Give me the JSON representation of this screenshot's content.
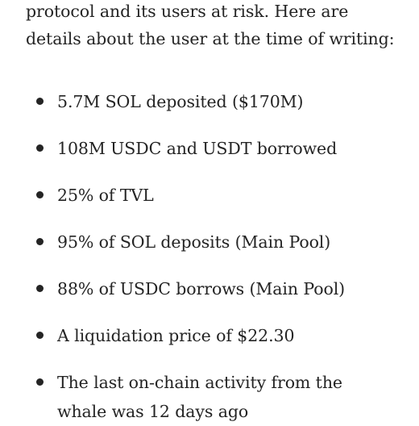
{
  "intro_lines": [
    "protocol and its users at risk. Here are",
    "details about the user at the time of writing:"
  ],
  "bullets": [
    [
      "5.7M SOL deposited ($170M)"
    ],
    [
      "108M USDC and USDT borrowed"
    ],
    [
      "25% of TVL"
    ],
    [
      "95% of SOL deposits (Main Pool)"
    ],
    [
      "88% of USDC borrows (Main Pool)"
    ],
    [
      "A liquidation price of $22.30"
    ],
    [
      "The last on-chain activity from the",
      "whale was 12 days ago"
    ]
  ]
}
